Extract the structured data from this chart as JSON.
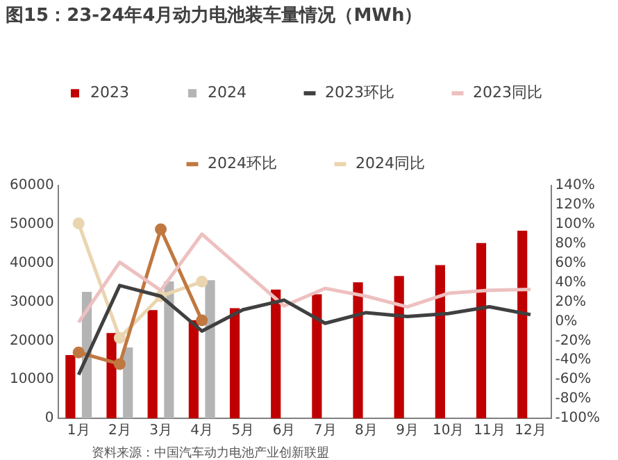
{
  "chart_data": {
    "type": "bar",
    "title": "图15：23-24年4月动力电池装车量情况（MWh）",
    "categories": [
      "1月",
      "2月",
      "3月",
      "4月",
      "5月",
      "6月",
      "7月",
      "8月",
      "9月",
      "10月",
      "11月",
      "12月"
    ],
    "series": [
      {
        "name": "2023",
        "color": "#c00000",
        "values": [
          16300,
          22000,
          27900,
          25300,
          28400,
          33200,
          32000,
          35100,
          36700,
          39500,
          45200,
          48400
        ]
      },
      {
        "name": "2024",
        "color": "#b4b4b4",
        "values": [
          32600,
          18300,
          35300,
          35600,
          null,
          null,
          null,
          null,
          null,
          null,
          null,
          null
        ]
      },
      {
        "name": "2023环比",
        "type": "line",
        "axis": "y2",
        "color": "#404040",
        "values": [
          -55,
          37,
          26,
          -10,
          12,
          22,
          -2,
          9,
          5,
          8,
          15,
          7
        ]
      },
      {
        "name": "2023同比",
        "type": "line",
        "axis": "y2",
        "color": "#eec0c0",
        "values": [
          -1,
          61,
          32,
          90,
          53,
          16,
          34,
          26,
          15,
          29,
          32,
          33
        ]
      },
      {
        "name": "2024环比",
        "type": "line",
        "axis": "y2",
        "marker": "circle",
        "color": "#c07840",
        "values": [
          -32,
          -44,
          95,
          1,
          null,
          null,
          null,
          null,
          null,
          null,
          null,
          null
        ]
      },
      {
        "name": "2024同比",
        "type": "line",
        "axis": "y2",
        "marker": "circle",
        "color": "#ead5b0",
        "values": [
          101,
          -17,
          26,
          41,
          null,
          null,
          null,
          null,
          null,
          null,
          null,
          null
        ]
      }
    ],
    "ylim": [
      0,
      60000
    ],
    "yticks": [
      0,
      10000,
      20000,
      30000,
      40000,
      50000,
      60000
    ],
    "y2lim": [
      -100,
      140
    ],
    "y2ticks": [
      {
        "value": -100,
        "label": "-100%"
      },
      {
        "value": -80,
        "label": "-80%"
      },
      {
        "value": -60,
        "label": "-60%"
      },
      {
        "value": -40,
        "label": "-40%"
      },
      {
        "value": -20,
        "label": "-20%"
      },
      {
        "value": 0,
        "label": "0%"
      },
      {
        "value": 20,
        "label": "20%"
      },
      {
        "value": 40,
        "label": "40%"
      },
      {
        "value": 60,
        "label": "60%"
      },
      {
        "value": 80,
        "label": "80%"
      },
      {
        "value": 100,
        "label": "100%"
      },
      {
        "value": 120,
        "label": "120%"
      },
      {
        "value": 140,
        "label": "140%"
      }
    ],
    "grid": false,
    "legend": "top",
    "marker": "none",
    "annotations": [
      "资料来源：中国汽车动力电池产业创新联盟"
    ]
  }
}
